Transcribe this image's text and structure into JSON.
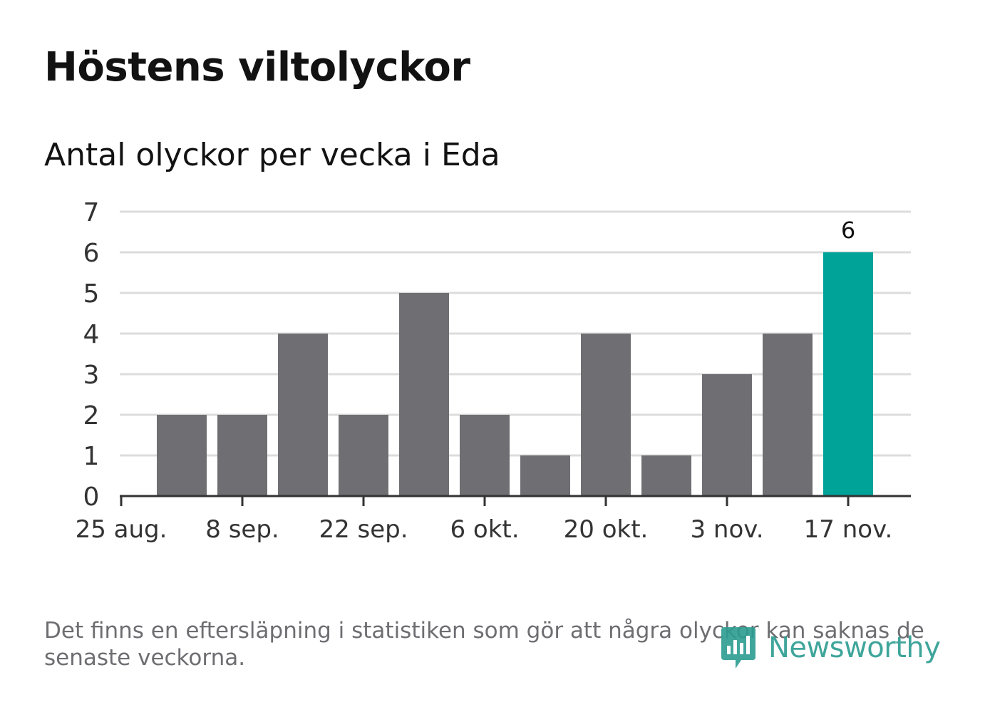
{
  "header": {
    "title": "Höstens viltolyckor",
    "subtitle": "Antal olyckor per vecka i Eda"
  },
  "chart_data": {
    "type": "bar",
    "x": [
      "2020-08-31",
      "2020-09-07",
      "2020-09-14",
      "2020-09-21",
      "2020-09-28",
      "2020-10-05",
      "2020-10-12",
      "2020-10-19",
      "2020-10-26",
      "2020-11-02",
      "2020-11-09",
      "2020-11-16"
    ],
    "values": [
      2,
      2,
      4,
      2,
      5,
      2,
      1,
      4,
      1,
      3,
      4,
      6
    ],
    "highlight_index": 11,
    "highlight_label": "6",
    "x_ticks": [
      "25 aug.",
      "8 sep.",
      "22 sep.",
      "6 okt.",
      "20 okt.",
      "3 nov.",
      "17 nov."
    ],
    "y_ticks": [
      0,
      1,
      2,
      3,
      4,
      5,
      6,
      7
    ],
    "ylim": [
      0,
      7
    ],
    "grid": true,
    "colors": {
      "bar": "#6f6e73",
      "highlight": "#00a398",
      "grid": "#dcdcdc",
      "axis": "#333333",
      "text": "#333333"
    }
  },
  "footer": {
    "note": "Det finns en eftersläpning i statistiken som gör att några olyckor kan saknas de senaste veckorna.",
    "logo_text": "Newsworthy",
    "logo_color": "#2b9c91"
  }
}
